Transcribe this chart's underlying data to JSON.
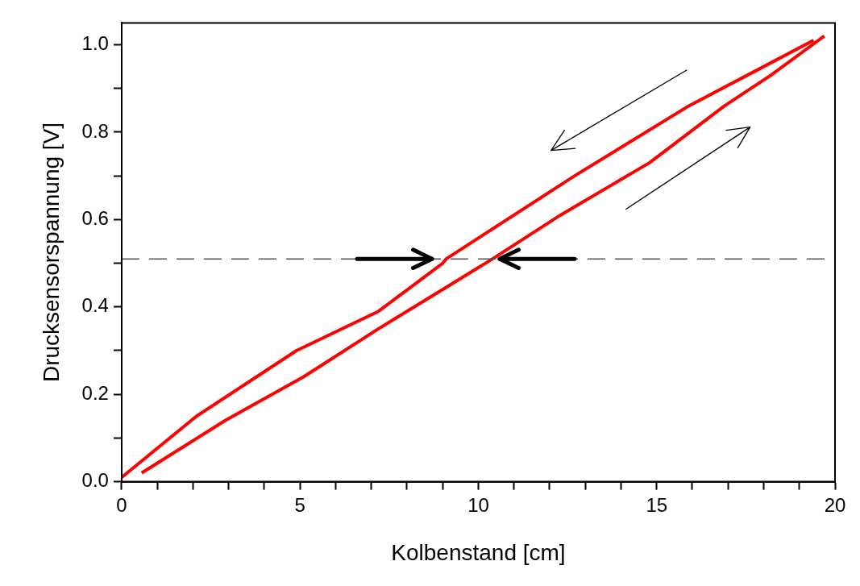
{
  "chart_data": {
    "type": "line",
    "xlabel": "Kolbenstand [cm]",
    "ylabel": "Drucksensorspannung [V]",
    "series": [
      {
        "color": "#ff0000",
        "x": [
          0.56,
          2.9,
          5.1,
          7.2,
          10.0,
          10.4,
          12.3,
          14.8,
          16.9,
          18.2,
          19.7
        ],
        "values": [
          0.02,
          0.14,
          0.24,
          0.35,
          0.49,
          0.51,
          0.61,
          0.73,
          0.86,
          0.93,
          1.02
        ]
      },
      {
        "color": "#ff0000",
        "x": [
          0.0,
          2.1,
          4.9,
          7.2,
          9.0,
          9.1,
          12.7,
          15.9,
          18.0,
          19.4
        ],
        "values": [
          0.01,
          0.15,
          0.3,
          0.39,
          0.5,
          0.51,
          0.7,
          0.86,
          0.95,
          1.01
        ]
      }
    ],
    "xlim": [
      0,
      20
    ],
    "ylim": [
      0,
      1.05
    ],
    "xticks": [
      0,
      {
        "value": 1,
        "label": null
      },
      {
        "value": 2,
        "label": null
      },
      {
        "value": 3,
        "label": null
      },
      {
        "value": 4,
        "label": null
      },
      5,
      {
        "value": 6,
        "label": null
      },
      {
        "value": 7,
        "label": null
      },
      {
        "value": 8,
        "label": null
      },
      {
        "value": 9,
        "label": null
      },
      10,
      {
        "value": 11,
        "label": null
      },
      {
        "value": 12,
        "label": null
      },
      {
        "value": 13,
        "label": null
      },
      {
        "value": 14,
        "label": null
      },
      15,
      {
        "value": 16,
        "label": null
      },
      {
        "value": 17,
        "label": null
      },
      {
        "value": 18,
        "label": null
      },
      {
        "value": 19,
        "label": null
      },
      20
    ],
    "yticks": [
      {
        "value": 0,
        "label": "0.0"
      },
      {
        "value": 0.1,
        "label": null
      },
      0.2,
      {
        "value": 0.3,
        "label": null
      },
      0.4,
      {
        "value": 0.5,
        "label": null
      },
      0.6,
      {
        "value": 0.7,
        "label": null
      },
      0.8,
      {
        "value": 0.9,
        "label": null
      },
      {
        "value": 1,
        "label": "1.0"
      }
    ],
    "ref_lines": [
      {
        "axis": "y",
        "value": 0.51,
        "color": "#555555",
        "line_style": "dashed"
      }
    ],
    "marker": "none",
    "line_style": "solid"
  }
}
